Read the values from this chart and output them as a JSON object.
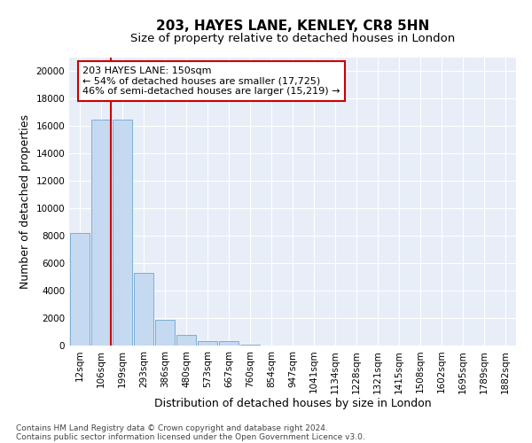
{
  "title1": "203, HAYES LANE, KENLEY, CR8 5HN",
  "title2": "Size of property relative to detached houses in London",
  "xlabel": "Distribution of detached houses by size in London",
  "ylabel": "Number of detached properties",
  "categories": [
    "12sqm",
    "106sqm",
    "199sqm",
    "293sqm",
    "386sqm",
    "480sqm",
    "573sqm",
    "667sqm",
    "760sqm",
    "854sqm",
    "947sqm",
    "1041sqm",
    "1134sqm",
    "1228sqm",
    "1321sqm",
    "1415sqm",
    "1508sqm",
    "1602sqm",
    "1695sqm",
    "1789sqm",
    "1882sqm"
  ],
  "values": [
    8200,
    16500,
    16500,
    5300,
    1850,
    800,
    350,
    300,
    50,
    0,
    0,
    0,
    0,
    0,
    0,
    0,
    0,
    0,
    0,
    0,
    0
  ],
  "bar_color": "#c5d9f0",
  "bar_edge_color": "#7bafd4",
  "marker_line_color": "#cc0000",
  "annotation_text": "203 HAYES LANE: 150sqm\n← 54% of detached houses are smaller (17,725)\n46% of semi-detached houses are larger (15,219) →",
  "annotation_box_color": "#ffffff",
  "annotation_box_edge": "#cc0000",
  "ylim": [
    0,
    21000
  ],
  "yticks": [
    0,
    2000,
    4000,
    6000,
    8000,
    10000,
    12000,
    14000,
    16000,
    18000,
    20000
  ],
  "footer1": "Contains HM Land Registry data © Crown copyright and database right 2024.",
  "footer2": "Contains public sector information licensed under the Open Government Licence v3.0.",
  "bg_color": "#ffffff",
  "plot_bg_color": "#e8eef8",
  "grid_color": "#ffffff",
  "title1_fontsize": 11,
  "title2_fontsize": 9.5,
  "tick_fontsize": 7.5,
  "label_fontsize": 9,
  "footer_fontsize": 6.5
}
